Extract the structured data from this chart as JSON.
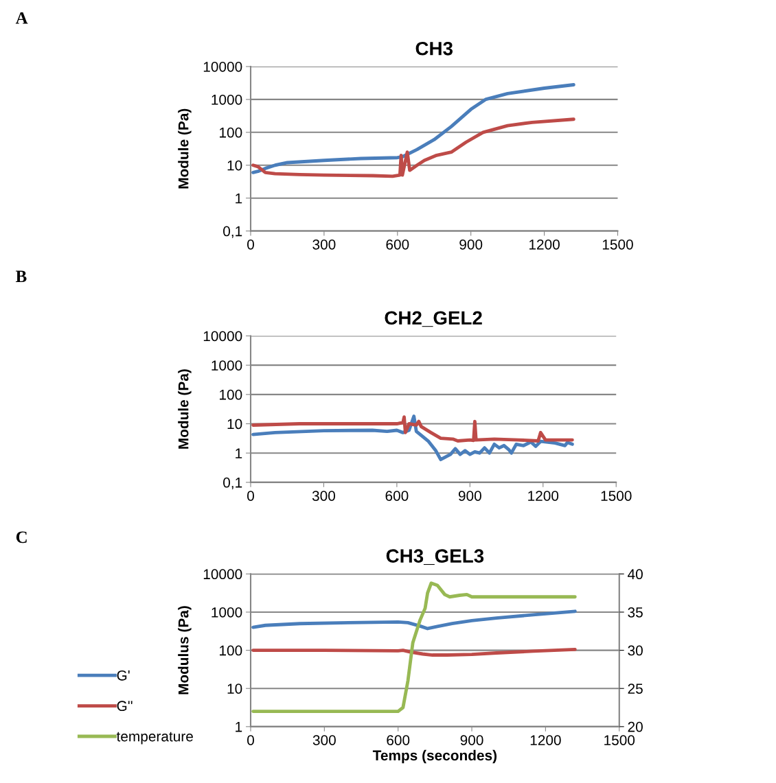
{
  "chart_data": [
    {
      "type": "line",
      "title": "CH3",
      "ylabel": "Module (Pa)",
      "annotations": [
        "A"
      ],
      "log": "y",
      "grid": "y",
      "legend": false,
      "marker": "none",
      "line_style": "solid",
      "xlim": [
        0,
        1500
      ],
      "xticks": [
        0,
        300,
        600,
        900,
        1200,
        1500
      ],
      "ylim": [
        0.1,
        10000
      ],
      "yticks": [
        {
          "value": 0.1,
          "label": "0,1"
        },
        1,
        10,
        100,
        1000,
        10000
      ],
      "series": [
        {
          "color": "#4a7ebb",
          "x": [
            10,
            30,
            60,
            100,
            150,
            300,
            450,
            600,
            620,
            680,
            750,
            820,
            900,
            960,
            1050,
            1200,
            1320
          ],
          "values": [
            6,
            6.5,
            8,
            10,
            12,
            14,
            16,
            17,
            18,
            30,
            60,
            150,
            500,
            1000,
            1500,
            2200,
            2800
          ]
        },
        {
          "color": "#be4b48",
          "x": [
            10,
            30,
            60,
            100,
            200,
            300,
            500,
            580,
            610,
            615,
            620,
            640,
            650,
            680,
            710,
            760,
            820,
            880,
            950,
            1050,
            1150,
            1320
          ],
          "values": [
            10,
            9,
            6,
            5.5,
            5.2,
            5,
            4.8,
            4.6,
            5,
            20,
            5,
            25,
            7,
            10,
            14,
            20,
            25,
            50,
            100,
            160,
            200,
            250
          ]
        }
      ]
    },
    {
      "type": "line",
      "title": "CH2_GEL2",
      "ylabel": "Module (Pa)",
      "annotations": [
        "B"
      ],
      "log": "y",
      "grid": "y",
      "legend": false,
      "marker": "none",
      "line_style": "solid",
      "xlim": [
        0,
        1500
      ],
      "xticks": [
        0,
        300,
        600,
        900,
        1200,
        1500
      ],
      "ylim": [
        0.1,
        10000
      ],
      "yticks": [
        {
          "value": 0.1,
          "label": "0,1"
        },
        1,
        10,
        100,
        1000,
        10000
      ],
      "series": [
        {
          "color": "#4a7ebb",
          "x": [
            10,
            100,
            300,
            500,
            560,
            600,
            625,
            650,
            670,
            680,
            700,
            730,
            760,
            780,
            820,
            840,
            860,
            880,
            900,
            920,
            940,
            960,
            980,
            1000,
            1020,
            1040,
            1060,
            1070,
            1090,
            1120,
            1150,
            1170,
            1190,
            1250,
            1290,
            1300,
            1320
          ],
          "values": [
            4.3,
            5,
            5.8,
            6,
            5.5,
            6,
            5,
            6,
            18,
            5.5,
            4,
            2.5,
            1.2,
            0.6,
            0.9,
            1.4,
            0.9,
            1.2,
            0.9,
            1.1,
            1,
            1.5,
            1,
            2,
            1.5,
            1.8,
            1.3,
            1,
            2,
            1.8,
            2.4,
            1.7,
            2.5,
            2.2,
            1.8,
            2.3,
            2
          ]
        },
        {
          "color": "#be4b48",
          "x": [
            10,
            200,
            600,
            625,
            630,
            635,
            650,
            680,
            690,
            700,
            740,
            780,
            830,
            850,
            900,
            915,
            920,
            925,
            1000,
            1100,
            1180,
            1190,
            1210,
            1320
          ],
          "values": [
            9,
            10,
            10,
            11,
            17,
            5,
            10,
            9,
            12,
            8,
            5,
            3.2,
            3,
            2.6,
            2.8,
            2.7,
            12,
            2.8,
            3,
            2.8,
            2.6,
            5,
            2.8,
            2.8
          ]
        }
      ]
    },
    {
      "type": "line",
      "title": "CH3_GEL3",
      "xlabel": "Temps (secondes)",
      "ylabel": "Modulus (Pa)",
      "annotations": [
        "C"
      ],
      "log": "y",
      "grid": "y",
      "legend": "left",
      "marker": "none",
      "line_style": "solid",
      "xlim": [
        0,
        1500
      ],
      "xticks": [
        0,
        300,
        600,
        900,
        1200,
        1500
      ],
      "ylim": [
        1,
        10000
      ],
      "yticks": [
        1,
        10,
        100,
        1000,
        10000
      ],
      "y2lim": [
        20,
        40
      ],
      "y2ticks": [
        20,
        25,
        30,
        35,
        40
      ],
      "series": [
        {
          "name": "G'",
          "color": "#4a7ebb",
          "x": [
            10,
            60,
            200,
            400,
            600,
            640,
            690,
            720,
            760,
            820,
            900,
            1000,
            1150,
            1320
          ],
          "values": [
            400,
            450,
            500,
            530,
            550,
            530,
            430,
            370,
            420,
            500,
            600,
            700,
            850,
            1050
          ]
        },
        {
          "name": "G''",
          "color": "#be4b48",
          "x": [
            10,
            300,
            600,
            620,
            650,
            700,
            740,
            800,
            900,
            1000,
            1150,
            1320
          ],
          "values": [
            100,
            100,
            97,
            100,
            90,
            80,
            75,
            75,
            78,
            85,
            95,
            105
          ]
        },
        {
          "name": "temperature",
          "color": "#98b954",
          "axis": "y2",
          "x": [
            10,
            600,
            620,
            640,
            660,
            690,
            710,
            720,
            735,
            760,
            790,
            810,
            850,
            880,
            900,
            1320
          ],
          "values": [
            22,
            22,
            22.5,
            26,
            31,
            34,
            35.5,
            37.5,
            38.8,
            38.5,
            37.3,
            37,
            37.2,
            37.3,
            37,
            37
          ]
        }
      ]
    }
  ]
}
